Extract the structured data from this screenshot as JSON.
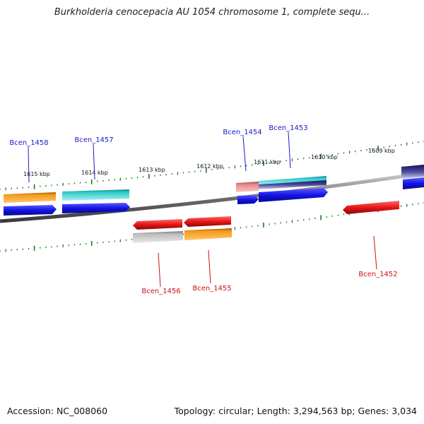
{
  "title": "Burkholderia cenocepacia AU 1054 chromosome 1, complete sequ...",
  "footer": {
    "accession": "Accession: NC_008060",
    "topology": "Topology: circular; Length: 3,294,563 bp; Genes: 3,034"
  },
  "scale_labels": [
    "1615 kbp",
    "1614 kbp",
    "1613 kbp",
    "1612 kbp",
    "1611 kbp",
    "1610 kbp",
    "1609 kbp"
  ],
  "gene_labels": {
    "forward": [
      "Bcen_1458",
      "Bcen_1457",
      "Bcen_1454",
      "Bcen_1453"
    ],
    "reverse": [
      "Bcen_1456",
      "Bcen_1455",
      "Bcen_1452"
    ]
  },
  "colors": {
    "forward_label": "#1a1ac8",
    "reverse_label": "#cc1111",
    "tick": "#1e7a1e",
    "backbone": "#7a7a7a",
    "cds_blue": "#1414e6",
    "orange": "#f59a1c",
    "cyan": "#2ec8c8",
    "red": "#e81616",
    "gray": "#bdbdbd",
    "pink": "#e88a8a",
    "navy": "#2a2a80"
  }
}
